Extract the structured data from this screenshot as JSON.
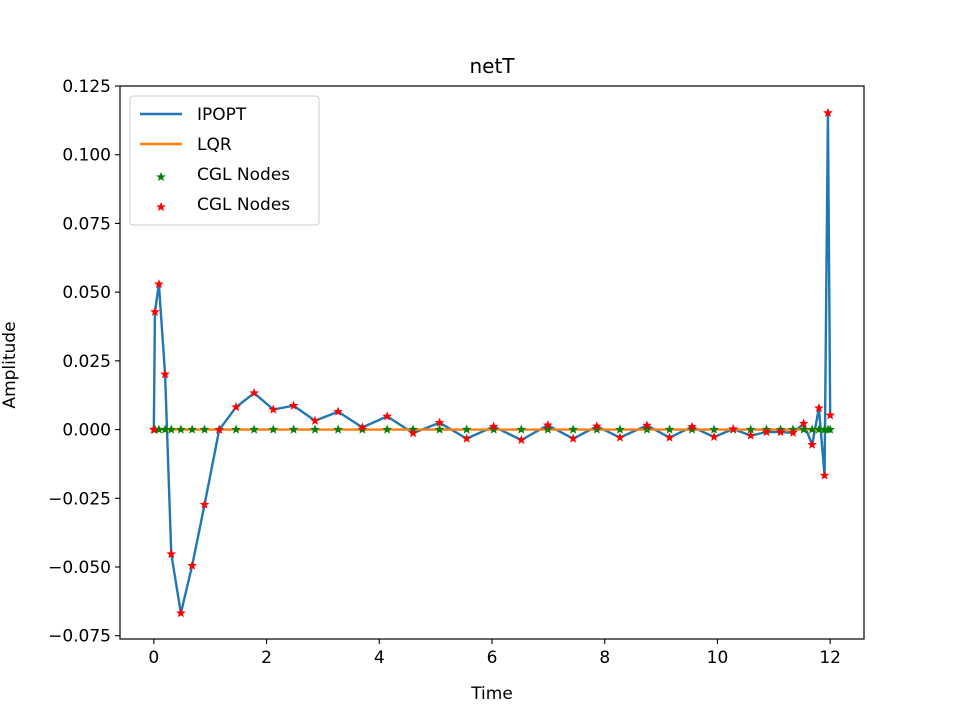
{
  "chart_data": {
    "type": "line",
    "title": "netT",
    "xlabel": "Time",
    "ylabel": "Amplitude",
    "xlim": [
      -0.6,
      12.6
    ],
    "ylim": [
      -0.0762,
      0.125
    ],
    "xticks": [
      0,
      2,
      4,
      6,
      8,
      10,
      12
    ],
    "xtick_labels": [
      "0",
      "2",
      "4",
      "6",
      "8",
      "10",
      "12"
    ],
    "yticks": [
      -0.075,
      -0.05,
      -0.025,
      0.0,
      0.025,
      0.05,
      0.075,
      0.1,
      0.125
    ],
    "ytick_labels": [
      "−0.075",
      "−0.050",
      "−0.025",
      "0.000",
      "0.025",
      "0.050",
      "0.075",
      "0.100",
      "0.125"
    ],
    "grid": false,
    "legend_position": "upper-left",
    "series": [
      {
        "name": "IPOPT",
        "type": "line",
        "color": "#1f77b4",
        "x": [
          0.0,
          0.02,
          0.09,
          0.2,
          0.31,
          0.48,
          0.68,
          0.9,
          1.16,
          1.46,
          1.78,
          2.12,
          2.48,
          2.86,
          3.27,
          3.7,
          4.14,
          4.6,
          5.07,
          5.55,
          6.03,
          6.52,
          6.99,
          7.44,
          7.86,
          8.27,
          8.75,
          9.15,
          9.55,
          9.94,
          10.28,
          10.59,
          10.87,
          11.12,
          11.34,
          11.53,
          11.68,
          11.8,
          11.9,
          11.96,
          12.0
        ],
        "y": [
          0.0,
          0.0428,
          0.0529,
          0.0201,
          -0.0453,
          -0.0668,
          -0.0495,
          -0.0273,
          -0.0001,
          0.0082,
          0.0133,
          0.0073,
          0.0087,
          0.0032,
          0.0065,
          0.0008,
          0.0048,
          -0.0013,
          0.0025,
          -0.0033,
          0.0011,
          -0.0038,
          0.0016,
          -0.0033,
          0.0012,
          -0.0029,
          0.0015,
          -0.0029,
          0.001,
          -0.0027,
          0.0002,
          -0.0022,
          -0.0009,
          -0.0009,
          -0.0012,
          0.0022,
          -0.0055,
          0.0078,
          -0.0167,
          0.1152,
          0.0052
        ]
      },
      {
        "name": "LQR",
        "type": "line",
        "color": "#ff7f0e",
        "x": [
          0.0,
          12.0
        ],
        "y": [
          0.0,
          0.0
        ]
      },
      {
        "name": "CGL Nodes",
        "type": "scatter",
        "marker": "star",
        "color": "#008000",
        "x": [
          0.0,
          0.02,
          0.09,
          0.2,
          0.31,
          0.48,
          0.68,
          0.9,
          1.16,
          1.46,
          1.78,
          2.12,
          2.48,
          2.86,
          3.27,
          3.7,
          4.14,
          4.6,
          5.07,
          5.55,
          6.03,
          6.52,
          6.99,
          7.44,
          7.86,
          8.27,
          8.75,
          9.15,
          9.55,
          9.94,
          10.28,
          10.59,
          10.87,
          11.12,
          11.34,
          11.53,
          11.68,
          11.8,
          11.9,
          11.96,
          12.0
        ],
        "y": [
          0.0,
          0.0,
          0.0,
          0.0,
          0.0,
          0.0,
          0.0,
          0.0,
          0.0,
          0.0,
          0.0,
          0.0,
          0.0,
          0.0,
          0.0,
          0.0,
          0.0,
          0.0,
          0.0,
          0.0,
          0.0,
          0.0,
          0.0,
          0.0,
          0.0,
          0.0,
          0.0,
          0.0,
          0.0,
          0.0,
          0.0,
          0.0,
          0.0,
          0.0,
          0.0,
          0.0,
          0.0,
          0.0,
          0.0,
          0.0,
          0.0
        ]
      },
      {
        "name": "CGL Nodes",
        "type": "scatter",
        "marker": "star",
        "color": "#ff0000",
        "x": [
          0.0,
          0.02,
          0.09,
          0.2,
          0.31,
          0.48,
          0.68,
          0.9,
          1.16,
          1.46,
          1.78,
          2.12,
          2.48,
          2.86,
          3.27,
          3.7,
          4.14,
          4.6,
          5.07,
          5.55,
          6.03,
          6.52,
          6.99,
          7.44,
          7.86,
          8.27,
          8.75,
          9.15,
          9.55,
          9.94,
          10.28,
          10.59,
          10.87,
          11.12,
          11.34,
          11.53,
          11.68,
          11.8,
          11.9,
          11.96,
          12.0
        ],
        "y": [
          0.0,
          0.0428,
          0.0529,
          0.0201,
          -0.0453,
          -0.0668,
          -0.0495,
          -0.0273,
          -0.0001,
          0.0082,
          0.0133,
          0.0073,
          0.0087,
          0.0032,
          0.0065,
          0.0008,
          0.0048,
          -0.0013,
          0.0025,
          -0.0033,
          0.0011,
          -0.0038,
          0.0016,
          -0.0033,
          0.0012,
          -0.0029,
          0.0015,
          -0.0029,
          0.001,
          -0.0027,
          0.0002,
          -0.0022,
          -0.0009,
          -0.0009,
          -0.0012,
          0.0022,
          -0.0055,
          0.0078,
          -0.0167,
          0.1152,
          0.0052
        ]
      }
    ]
  }
}
